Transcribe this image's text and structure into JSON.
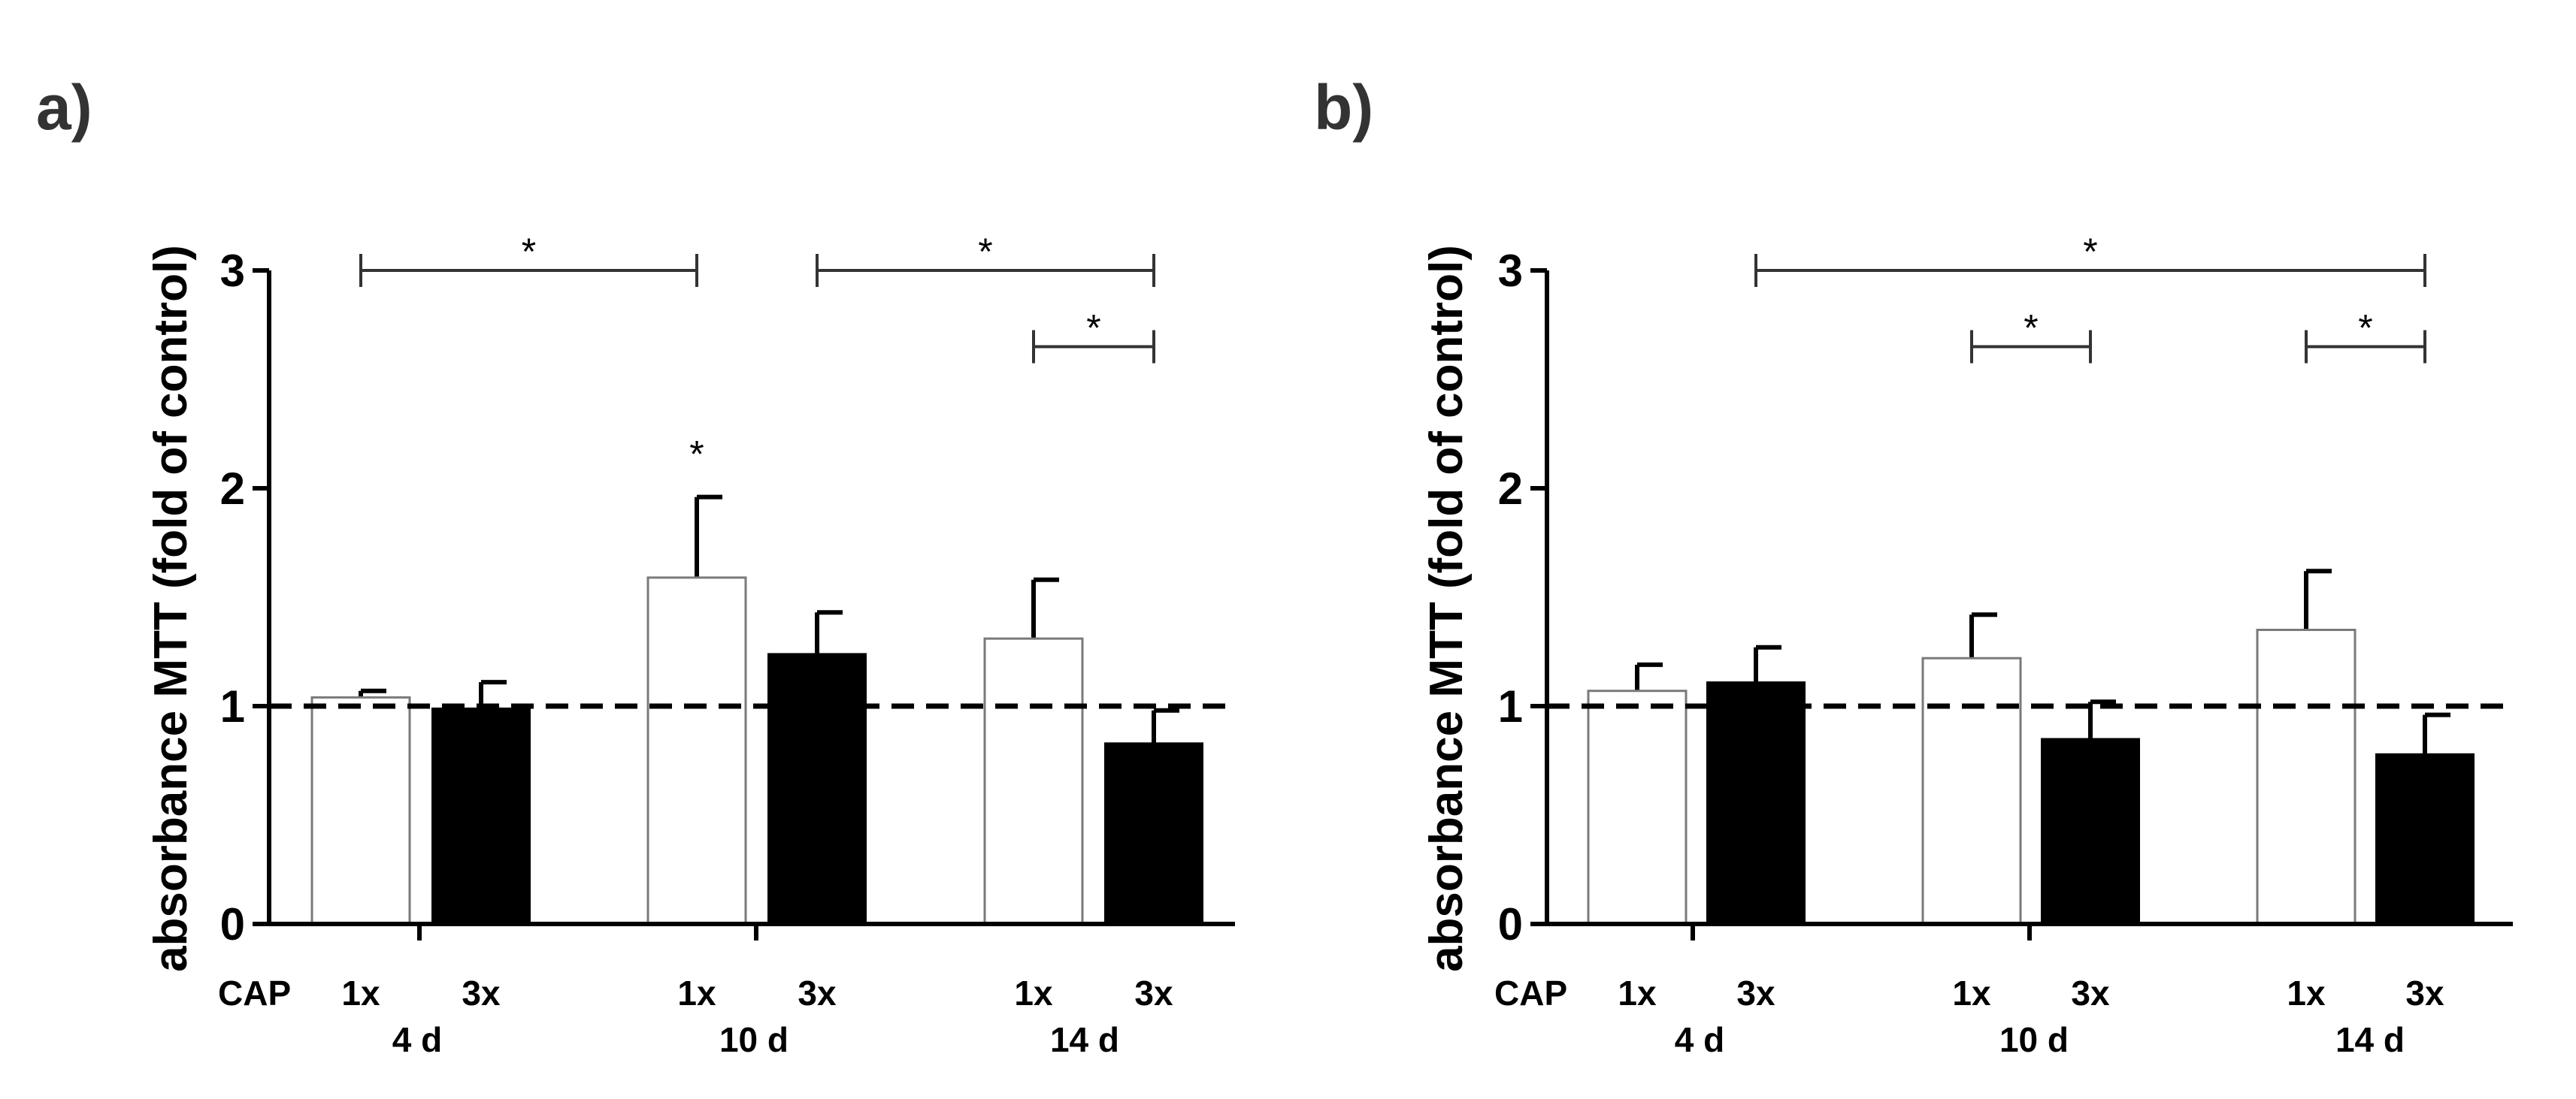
{
  "chart_data": [
    {
      "type": "bar",
      "panel_label": "a)",
      "ylabel": "absorbance MTT (fold of control)",
      "ylim": [
        0,
        3
      ],
      "yticks": [
        "0",
        "1",
        "2",
        "3"
      ],
      "reference_line": 1,
      "treatment_label": "CAP",
      "groups": [
        "4 d",
        "10 d",
        "14 d"
      ],
      "series": [
        {
          "name": "1x",
          "fill": "#ffffff",
          "values": [
            1.04,
            1.59,
            1.31
          ],
          "errors": [
            0.03,
            0.37,
            0.27
          ]
        },
        {
          "name": "3x",
          "fill": "#000000",
          "values": [
            0.99,
            1.24,
            0.83
          ],
          "errors": [
            0.12,
            0.19,
            0.15
          ]
        }
      ],
      "significance": [
        {
          "label": "*",
          "from": [
            0,
            "1x"
          ],
          "to": [
            1,
            "1x"
          ],
          "level": 3.0
        },
        {
          "label": "*",
          "from": [
            1,
            "3x"
          ],
          "to": [
            2,
            "3x"
          ],
          "level": 3.0
        },
        {
          "label": "*",
          "from": [
            2,
            "1x"
          ],
          "to": [
            2,
            "3x"
          ],
          "level": 2.65
        }
      ],
      "bar_annotations": [
        {
          "label": "*",
          "group": 1,
          "series": "1x"
        }
      ]
    },
    {
      "type": "bar",
      "panel_label": "b)",
      "ylabel": "absorbance MTT (fold of control)",
      "ylim": [
        0,
        3
      ],
      "yticks": [
        "0",
        "1",
        "2",
        "3"
      ],
      "reference_line": 1,
      "treatment_label": "CAP",
      "groups": [
        "4 d",
        "10 d",
        "14 d"
      ],
      "series": [
        {
          "name": "1x",
          "fill": "#ffffff",
          "values": [
            1.07,
            1.22,
            1.35
          ],
          "errors": [
            0.12,
            0.2,
            0.27
          ]
        },
        {
          "name": "3x",
          "fill": "#000000",
          "values": [
            1.11,
            0.85,
            0.78
          ],
          "errors": [
            0.16,
            0.17,
            0.18
          ]
        }
      ],
      "significance": [
        {
          "label": "*",
          "from": [
            0,
            "3x"
          ],
          "to": [
            2,
            "3x"
          ],
          "level": 3.0
        },
        {
          "label": "*",
          "from": [
            1,
            "1x"
          ],
          "to": [
            1,
            "3x"
          ],
          "level": 2.65
        },
        {
          "label": "*",
          "from": [
            2,
            "1x"
          ],
          "to": [
            2,
            "3x"
          ],
          "level": 2.65
        }
      ],
      "bar_annotations": []
    }
  ]
}
